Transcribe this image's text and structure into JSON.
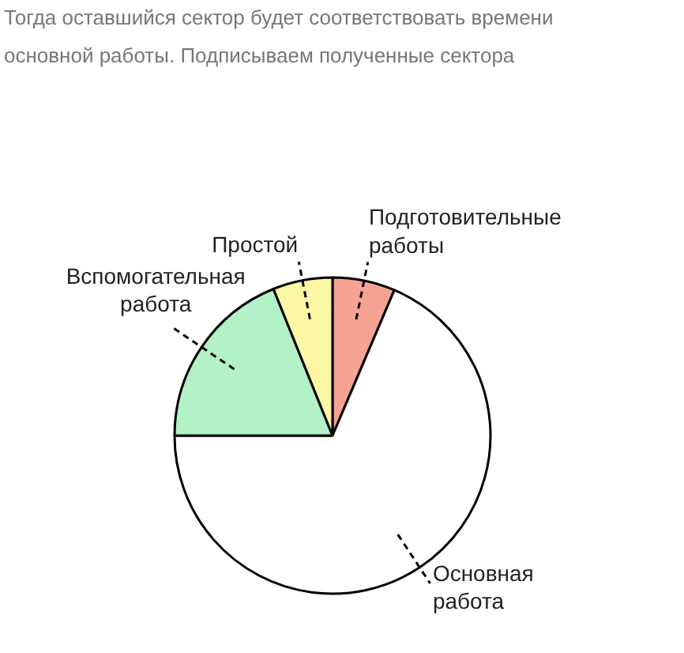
{
  "chart_data": {
    "type": "pie",
    "annotations": [
      "Тогда оставшийся сектор будет соответствовать времени основной работы. Подписываем полученные сектора"
    ],
    "categories": [
      "Подготовительные работы",
      "Основная работа",
      "Вспомогательная работа",
      "Простой"
    ],
    "values": [
      6.4,
      68.6,
      18.9,
      6.1
    ],
    "colors": [
      "#f7a393",
      "#ffffff",
      "#b3f2c6",
      "#fbf7a5"
    ]
  }
}
